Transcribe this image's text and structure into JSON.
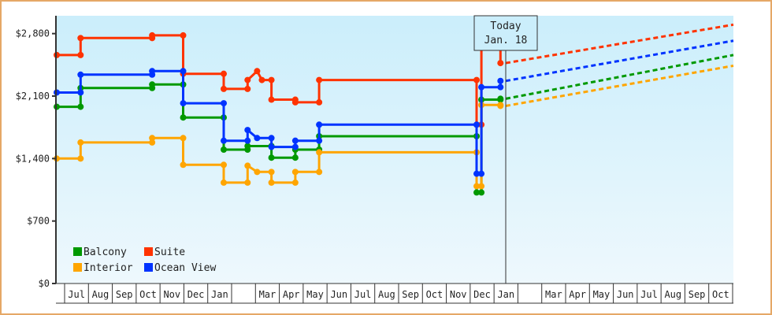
{
  "chart_data": {
    "type": "line",
    "title": "",
    "xlabel": "",
    "ylabel": "",
    "ylim": [
      0,
      3000
    ],
    "y_ticks": [
      0,
      700,
      1400,
      2100,
      2800
    ],
    "y_tick_labels": [
      "$0",
      "$700",
      "$1,400",
      "$2,100",
      "$2,800"
    ],
    "x_tick_labels": [
      "Jul",
      "Aug",
      "Sep",
      "Oct",
      "Nov",
      "Dec",
      "Jan",
      "",
      "Mar",
      "Apr",
      "May",
      "Jun",
      "Jul",
      "Aug",
      "Sep",
      "Oct",
      "Nov",
      "Dec",
      "Jan",
      "",
      "Mar",
      "Apr",
      "May",
      "Jun",
      "Jul",
      "Aug",
      "Sep",
      "Oct"
    ],
    "grid": false,
    "legend_position": "lower-left",
    "annotation": {
      "line1": "Today",
      "line2": "Jan. 18"
    },
    "series": [
      {
        "name": "Balcony",
        "color": "#009900",
        "steps": [
          [
            0,
            1980
          ],
          [
            1,
            1980
          ],
          [
            1,
            2190
          ],
          [
            4,
            2190
          ],
          [
            4,
            2230
          ],
          [
            5.3,
            2230
          ],
          [
            5.3,
            1860
          ],
          [
            7,
            1860
          ],
          [
            7,
            1500
          ],
          [
            8,
            1500
          ],
          [
            8,
            1540
          ],
          [
            9,
            1540
          ],
          [
            9,
            1410
          ],
          [
            10,
            1410
          ],
          [
            10,
            1500
          ],
          [
            11,
            1500
          ],
          [
            11,
            1650
          ],
          [
            17.6,
            1650
          ],
          [
            17.6,
            1020
          ],
          [
            17.8,
            1020
          ],
          [
            17.8,
            2060
          ],
          [
            18.6,
            2060
          ],
          [
            18.6,
            2070
          ]
        ],
        "forecast_end": 2560
      },
      {
        "name": "Suite",
        "color": "#ff3300",
        "steps": [
          [
            0,
            2560
          ],
          [
            1,
            2560
          ],
          [
            1,
            2750
          ],
          [
            4,
            2750
          ],
          [
            4,
            2780
          ],
          [
            5.3,
            2780
          ],
          [
            5.3,
            2350
          ],
          [
            7,
            2350
          ],
          [
            7,
            2180
          ],
          [
            8,
            2180
          ],
          [
            8,
            2280
          ],
          [
            8.4,
            2380
          ],
          [
            8.6,
            2280
          ],
          [
            9,
            2280
          ],
          [
            9,
            2060
          ],
          [
            10,
            2060
          ],
          [
            10,
            2030
          ],
          [
            11,
            2030
          ],
          [
            11,
            2280
          ],
          [
            17.6,
            2280
          ],
          [
            17.6,
            1780
          ],
          [
            17.8,
            1780
          ],
          [
            17.8,
            2660
          ],
          [
            18.6,
            2660
          ],
          [
            18.6,
            2470
          ]
        ],
        "forecast_end": 2900
      },
      {
        "name": "Interior",
        "color": "#ffa500",
        "steps": [
          [
            0,
            1400
          ],
          [
            1,
            1400
          ],
          [
            1,
            1580
          ],
          [
            4,
            1580
          ],
          [
            4,
            1630
          ],
          [
            5.3,
            1630
          ],
          [
            5.3,
            1330
          ],
          [
            7,
            1330
          ],
          [
            7,
            1130
          ],
          [
            8,
            1130
          ],
          [
            8,
            1320
          ],
          [
            8.4,
            1250
          ],
          [
            9,
            1250
          ],
          [
            9,
            1130
          ],
          [
            10,
            1130
          ],
          [
            10,
            1250
          ],
          [
            11,
            1250
          ],
          [
            11,
            1470
          ],
          [
            17.6,
            1470
          ],
          [
            17.6,
            1090
          ],
          [
            17.8,
            1090
          ],
          [
            17.8,
            2000
          ],
          [
            18.6,
            2000
          ],
          [
            18.6,
            1990
          ]
        ],
        "forecast_end": 2440
      },
      {
        "name": "Ocean View",
        "color": "#0033ff",
        "steps": [
          [
            0,
            2140
          ],
          [
            1,
            2140
          ],
          [
            1,
            2340
          ],
          [
            4,
            2340
          ],
          [
            4,
            2380
          ],
          [
            5.3,
            2380
          ],
          [
            5.3,
            2020
          ],
          [
            7,
            2020
          ],
          [
            7,
            1600
          ],
          [
            8,
            1600
          ],
          [
            8,
            1720
          ],
          [
            8.4,
            1630
          ],
          [
            9,
            1630
          ],
          [
            9,
            1530
          ],
          [
            10,
            1530
          ],
          [
            10,
            1600
          ],
          [
            11,
            1600
          ],
          [
            11,
            1780
          ],
          [
            17.6,
            1780
          ],
          [
            17.6,
            1230
          ],
          [
            17.8,
            1230
          ],
          [
            17.8,
            2200
          ],
          [
            18.6,
            2200
          ],
          [
            18.6,
            2270
          ]
        ],
        "forecast_end": 2720
      }
    ]
  },
  "legend": {
    "items": [
      {
        "label": "Balcony",
        "color": "#009900"
      },
      {
        "label": "Suite",
        "color": "#ff3300"
      },
      {
        "label": "Interior",
        "color": "#ffa500"
      },
      {
        "label": "Ocean View",
        "color": "#0033ff"
      }
    ]
  },
  "today": {
    "line1": "Today",
    "line2": "Jan. 18"
  },
  "y_axis": {
    "labels": [
      "$2,800",
      "$2,100",
      "$1,400",
      "$700",
      "$0"
    ]
  },
  "x_axis": {
    "labels": [
      "Jul",
      "Aug",
      "Sep",
      "Oct",
      "Nov",
      "Dec",
      "Jan",
      "",
      "Mar",
      "Apr",
      "May",
      "Jun",
      "Jul",
      "Aug",
      "Sep",
      "Oct",
      "Nov",
      "Dec",
      "Jan",
      "",
      "Mar",
      "Apr",
      "May",
      "Jun",
      "Jul",
      "Aug",
      "Sep",
      "Oct"
    ]
  }
}
